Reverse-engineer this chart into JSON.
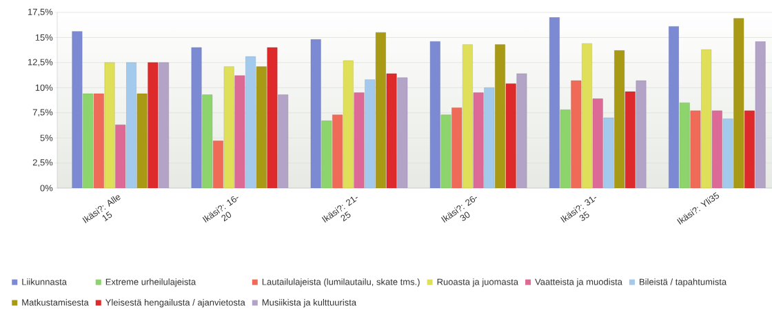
{
  "chart_data": {
    "type": "bar",
    "categories": [
      "Ikäsi?: Alle 15",
      "Ikäsi?: 16-20",
      "Ikäsi?: 21-25",
      "Ikäsi?: 26-30",
      "Ikäsi?: 31-35",
      "Ikäsi?: Yli35"
    ],
    "series": [
      {
        "name": "Liikunnasta",
        "color": "#7b8ad3",
        "values": [
          15.6,
          14.0,
          14.8,
          14.6,
          17.0,
          16.1
        ]
      },
      {
        "name": "Extreme urheilulajeista",
        "color": "#8dd46c",
        "values": [
          9.4,
          9.3,
          6.7,
          7.3,
          7.8,
          8.5
        ]
      },
      {
        "name": "Lautailulajeista (lumilautailu, skate tms.)",
        "color": "#ef6b58",
        "values": [
          9.4,
          4.7,
          7.3,
          8.0,
          10.7,
          7.7
        ]
      },
      {
        "name": "Ruoasta ja juomasta",
        "color": "#dfdf5a",
        "values": [
          12.5,
          12.1,
          12.7,
          14.3,
          14.4,
          13.8
        ]
      },
      {
        "name": "Vaatteista ja muodista",
        "color": "#dd6a96",
        "values": [
          6.3,
          11.2,
          9.5,
          9.5,
          8.9,
          7.7
        ]
      },
      {
        "name": "Bileistä / tapahtumista",
        "color": "#a3c9ec",
        "values": [
          12.5,
          13.1,
          10.8,
          10.0,
          7.0,
          6.9
        ]
      },
      {
        "name": "Matkustamisesta",
        "color": "#a99a15",
        "values": [
          9.4,
          12.1,
          15.5,
          14.3,
          13.7,
          16.9
        ]
      },
      {
        "name": "Yleisestä hengailusta / ajanvietosta",
        "color": "#de2a2a",
        "values": [
          12.5,
          14.0,
          11.4,
          10.4,
          9.6,
          7.7
        ]
      },
      {
        "name": "Musiikista ja kulttuurista",
        "color": "#b3a3c7",
        "values": [
          12.5,
          9.3,
          11.0,
          11.4,
          10.7,
          14.6
        ]
      }
    ],
    "ylim": [
      0,
      17.5
    ],
    "yticks": [
      {
        "value": 0,
        "label": "0%"
      },
      {
        "value": 2.5,
        "label": "2,5%"
      },
      {
        "value": 5,
        "label": "5%"
      },
      {
        "value": 7.5,
        "label": "7,5%"
      },
      {
        "value": 10,
        "label": "10%"
      },
      {
        "value": 12.5,
        "label": "12,5%"
      },
      {
        "value": 15,
        "label": "15%"
      },
      {
        "value": 17.5,
        "label": "17,5%"
      }
    ],
    "grid": "y",
    "legend": "bottom"
  }
}
